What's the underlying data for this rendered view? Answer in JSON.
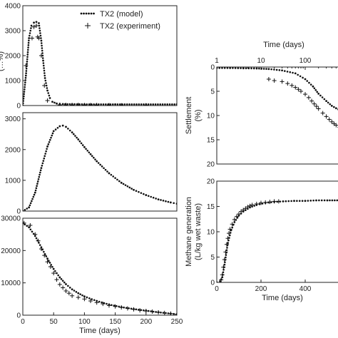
{
  "chart_data": [
    {
      "type": "scatter",
      "panel": "left-top",
      "xlim": [
        0,
        250
      ],
      "ylim": [
        0,
        4000
      ],
      "yticks": [
        "0",
        "1000",
        "2000",
        "3000",
        "4000"
      ],
      "ylabel_fragment": "(…%)",
      "legend": {
        "placement": "top-right",
        "entries": [
          "TX2 (model)",
          "TX2 (experiment)"
        ]
      },
      "series": [
        {
          "name": "TX2 (model)",
          "style": "dotted",
          "x": [
            0,
            5,
            10,
            14,
            18,
            22,
            26,
            30,
            33,
            36,
            40,
            44,
            48,
            55,
            65,
            80,
            100,
            150,
            200,
            250
          ],
          "y": [
            0,
            1200,
            2700,
            3200,
            3320,
            3350,
            3300,
            2600,
            1800,
            1100,
            600,
            300,
            150,
            80,
            60,
            55,
            50,
            50,
            50,
            50
          ]
        },
        {
          "name": "TX2 (experiment)",
          "style": "plus",
          "x": [
            5,
            15,
            18,
            22,
            24,
            26,
            30,
            35,
            40,
            60,
            70,
            80,
            90,
            100,
            110,
            120,
            140,
            160,
            200
          ],
          "y": [
            1600,
            2700,
            3150,
            3200,
            2750,
            2700,
            2000,
            800,
            200,
            30,
            20,
            20,
            25,
            20,
            20,
            20,
            15,
            10,
            10
          ]
        }
      ]
    },
    {
      "type": "line",
      "panel": "left-middle",
      "xlim": [
        0,
        250
      ],
      "ylim": [
        0,
        3200
      ],
      "yticks": [
        "0",
        "1000",
        "2000",
        "3000"
      ],
      "series": [
        {
          "style": "dotted",
          "x": [
            0,
            10,
            20,
            30,
            40,
            50,
            60,
            65,
            70,
            80,
            90,
            100,
            110,
            120,
            140,
            160,
            180,
            200,
            220,
            240,
            250
          ],
          "y": [
            0,
            120,
            600,
            1400,
            2100,
            2600,
            2760,
            2780,
            2740,
            2560,
            2330,
            2080,
            1850,
            1620,
            1230,
            920,
            690,
            520,
            380,
            280,
            240
          ]
        }
      ]
    },
    {
      "type": "scatter",
      "panel": "left-bottom",
      "xlim": [
        0,
        250
      ],
      "ylim": [
        0,
        30000
      ],
      "xticks": [
        "0",
        "50",
        "100",
        "150",
        "200",
        "250"
      ],
      "yticks": [
        "0",
        "10000",
        "20000",
        "30000"
      ],
      "xlabel": "Time (days)",
      "series": [
        {
          "style": "dotted",
          "x": [
            0,
            10,
            20,
            30,
            40,
            50,
            60,
            70,
            80,
            90,
            100,
            120,
            140,
            160,
            180,
            200,
            220,
            240,
            250
          ],
          "y": [
            28500,
            27200,
            24500,
            21000,
            17500,
            14300,
            11700,
            9600,
            8000,
            6800,
            5800,
            4400,
            3300,
            2500,
            1900,
            1400,
            900,
            500,
            300
          ]
        },
        {
          "style": "plus",
          "x": [
            2,
            12,
            20,
            25,
            30,
            35,
            40,
            45,
            50,
            55,
            60,
            65,
            70,
            75,
            80,
            90,
            100,
            110,
            120,
            130,
            140,
            150,
            160,
            170,
            180,
            190,
            200,
            210,
            220,
            230,
            240,
            250
          ],
          "y": [
            28500,
            27800,
            25000,
            23000,
            20500,
            18500,
            16500,
            15000,
            13000,
            11000,
            9500,
            8500,
            7500,
            6800,
            6000,
            5500,
            5000,
            4400,
            3900,
            3500,
            3000,
            2700,
            2400,
            2100,
            1800,
            1500,
            1300,
            1100,
            900,
            700,
            500,
            300
          ]
        }
      ]
    },
    {
      "type": "scatter",
      "panel": "right-top",
      "xscale": "log",
      "xlim": [
        1,
        1000
      ],
      "ylim": [
        0,
        20
      ],
      "y_inverted": true,
      "xticks": [
        "1",
        "10",
        "100"
      ],
      "yticks": [
        "0",
        "5",
        "10",
        "15",
        "20"
      ],
      "xlabel": "Time (days)",
      "ylabel": "Settlement",
      "ylabel2": "(%)",
      "series": [
        {
          "style": "dotted",
          "x": [
            1,
            2,
            4,
            8,
            15,
            30,
            60,
            100,
            150,
            200,
            300,
            400,
            500,
            700,
            1000
          ],
          "y": [
            0.2,
            0.2,
            0.25,
            0.3,
            0.4,
            0.7,
            1.3,
            2.5,
            4.0,
            5.5,
            7.0,
            8.0,
            8.5,
            9.2,
            9.6
          ]
        },
        {
          "style": "plus",
          "x": [
            15,
            20,
            30,
            40,
            50,
            60,
            70,
            80,
            100,
            120,
            140,
            160,
            180,
            200,
            250,
            300,
            350,
            400,
            450,
            500,
            600,
            700,
            800,
            900,
            1000
          ],
          "y": [
            2.5,
            2.8,
            3.0,
            3.4,
            3.8,
            4.2,
            4.6,
            5.0,
            5.6,
            6.3,
            7.0,
            7.6,
            8.1,
            8.6,
            9.5,
            10.2,
            10.8,
            11.3,
            11.7,
            12.0,
            12.4,
            12.7,
            12.9,
            13.0,
            13.1
          ]
        }
      ]
    },
    {
      "type": "scatter",
      "panel": "right-bottom",
      "xlim": [
        0,
        600
      ],
      "ylim": [
        0,
        20
      ],
      "xticks": [
        "0",
        "200",
        "400"
      ],
      "yticks": [
        "0",
        "5",
        "10",
        "15",
        "20"
      ],
      "xlabel": "Time (days)",
      "ylabel": "Methane generation",
      "ylabel2": "(L/kg wet waste)",
      "series": [
        {
          "style": "dotted",
          "x": [
            0,
            15,
            25,
            35,
            50,
            65,
            80,
            100,
            120,
            150,
            180,
            220,
            260,
            300,
            350,
            400,
            450,
            500,
            600
          ],
          "y": [
            0,
            0.2,
            1.0,
            3.5,
            7.8,
            10.3,
            11.9,
            13.2,
            14.0,
            14.8,
            15.3,
            15.7,
            15.9,
            16.0,
            16.1,
            16.1,
            16.2,
            16.2,
            16.2
          ]
        },
        {
          "style": "plus",
          "x": [
            20,
            25,
            30,
            35,
            40,
            45,
            50,
            55,
            60,
            70,
            80,
            90,
            100,
            110,
            120,
            130,
            140,
            150,
            160,
            180,
            200,
            220,
            240,
            260,
            280
          ],
          "y": [
            0.5,
            1.5,
            3.0,
            4.5,
            6.0,
            7.5,
            8.7,
            9.7,
            10.5,
            11.5,
            12.4,
            13.0,
            13.5,
            14.0,
            14.3,
            14.6,
            14.9,
            15.1,
            15.3,
            15.5,
            15.7,
            15.8,
            15.9,
            16.0,
            16.0
          ]
        }
      ]
    }
  ]
}
